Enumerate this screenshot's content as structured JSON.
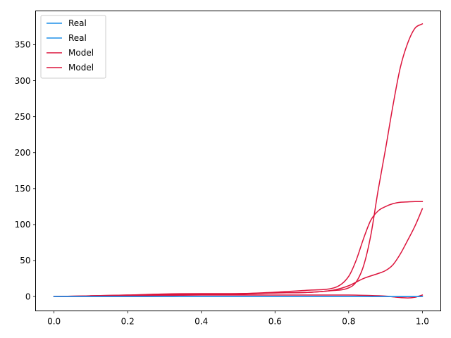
{
  "chart_data": {
    "type": "line",
    "title": "",
    "xlabel": "",
    "ylabel": "",
    "xlim": [
      -0.05,
      1.05
    ],
    "ylim": [
      -20,
      397
    ],
    "xticks": [
      0.0,
      0.2,
      0.4,
      0.6,
      0.8,
      1.0
    ],
    "xtick_labels": [
      "0.0",
      "0.2",
      "0.4",
      "0.6",
      "0.8",
      "1.0"
    ],
    "yticks": [
      0,
      50,
      100,
      150,
      200,
      250,
      300,
      350
    ],
    "ytick_labels": [
      "0",
      "50",
      "100",
      "150",
      "200",
      "250",
      "300",
      "350"
    ],
    "grid": false,
    "legend_position": "top-left",
    "colors": {
      "real": "#1f8fe8",
      "model": "#dc143c"
    },
    "legend": [
      {
        "label": "Real",
        "color": "#1f8fe8"
      },
      {
        "label": "Real",
        "color": "#1f8fe8"
      },
      {
        "label": "Model",
        "color": "#dc143c"
      },
      {
        "label": "Model",
        "color": "#dc143c"
      }
    ],
    "series": [
      {
        "name": "Real",
        "color": "#1f8fe8",
        "x": [
          0.0,
          0.1,
          0.2,
          0.3,
          0.4,
          0.5,
          0.6,
          0.7,
          0.8,
          0.9,
          1.0
        ],
        "y": [
          0,
          0,
          0,
          0,
          0,
          0,
          0,
          0,
          0,
          0,
          0
        ]
      },
      {
        "name": "Real",
        "color": "#1f8fe8",
        "x": [
          0.0,
          0.1,
          0.2,
          0.3,
          0.4,
          0.5,
          0.6,
          0.7,
          0.8,
          0.9,
          1.0
        ],
        "y": [
          0,
          0,
          0,
          0,
          0,
          0,
          0,
          0,
          0,
          0,
          0
        ]
      },
      {
        "name": "Model",
        "color": "#dc143c",
        "x": [
          0.0,
          0.1,
          0.2,
          0.3,
          0.4,
          0.5,
          0.6,
          0.7,
          0.75,
          0.8,
          0.82,
          0.84,
          0.86,
          0.88,
          0.9,
          0.92,
          0.94,
          0.96,
          0.98,
          1.0
        ],
        "y": [
          0,
          0.5,
          1.5,
          2.5,
          2.5,
          3,
          5,
          6,
          8,
          12,
          20,
          42,
          85,
          148,
          205,
          265,
          318,
          352,
          373,
          379
        ]
      },
      {
        "name": "Model",
        "color": "#dc143c",
        "x": [
          0.0,
          0.1,
          0.2,
          0.3,
          0.4,
          0.5,
          0.6,
          0.7,
          0.76,
          0.8,
          0.82,
          0.84,
          0.86,
          0.88,
          0.9,
          0.92,
          0.94,
          0.96,
          0.98,
          1.0
        ],
        "y": [
          0,
          1,
          2,
          3.5,
          4,
          4,
          6,
          9,
          12,
          28,
          50,
          80,
          106,
          119,
          125,
          129,
          131,
          131.5,
          132,
          132
        ]
      },
      {
        "name": "Model",
        "color": "#dc143c",
        "x": [
          0.0,
          0.1,
          0.2,
          0.3,
          0.4,
          0.5,
          0.6,
          0.7,
          0.76,
          0.8,
          0.84,
          0.88,
          0.9,
          0.92,
          0.94,
          0.96,
          0.98,
          1.0
        ],
        "y": [
          0,
          1,
          2,
          3,
          3,
          4,
          5,
          6,
          9,
          15,
          25,
          32,
          36,
          44,
          59,
          78,
          98,
          122
        ]
      },
      {
        "name": "Model",
        "color": "#dc143c",
        "x": [
          0.0,
          0.1,
          0.2,
          0.3,
          0.4,
          0.5,
          0.6,
          0.7,
          0.8,
          0.85,
          0.9,
          0.93,
          0.96,
          0.98,
          1.0
        ],
        "y": [
          0,
          0.5,
          1,
          1.5,
          2,
          2,
          2,
          2,
          2,
          1.5,
          0.5,
          -1,
          -2,
          -1,
          2
        ]
      }
    ]
  }
}
